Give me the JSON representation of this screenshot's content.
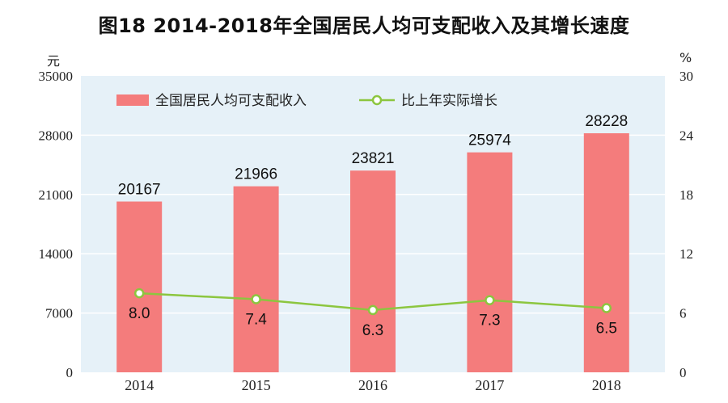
{
  "title": "图18   2014-2018年全国居民人均可支配收入及其增长速度",
  "colors": {
    "bar": "#f47c7c",
    "line": "#8cc63f",
    "plot_bg": "#e6f1f8",
    "grid": "#ffffff"
  },
  "chart_data": {
    "type": "bar",
    "categories": [
      "2014",
      "2015",
      "2016",
      "2017",
      "2018"
    ],
    "series": [
      {
        "name": "全国居民人均可支配收入",
        "type": "bar",
        "axis": "left",
        "values": [
          20167,
          21966,
          23821,
          25974,
          28228
        ]
      },
      {
        "name": "比上年实际增长",
        "type": "line",
        "axis": "right",
        "values": [
          8.0,
          7.4,
          6.3,
          7.3,
          6.5
        ],
        "labels": [
          "8.0",
          "7.4",
          "6.3",
          "7.3",
          "6.5"
        ]
      }
    ],
    "ylabel": "元",
    "y2label": "%",
    "ylim": [
      0,
      35000
    ],
    "y2lim": [
      0,
      30
    ],
    "yticks": [
      "0",
      "7000",
      "14000",
      "21000",
      "28000",
      "35000"
    ],
    "y2ticks": [
      "0",
      "6",
      "12",
      "18",
      "24",
      "30"
    ],
    "grid": true,
    "legend": "top-left"
  }
}
